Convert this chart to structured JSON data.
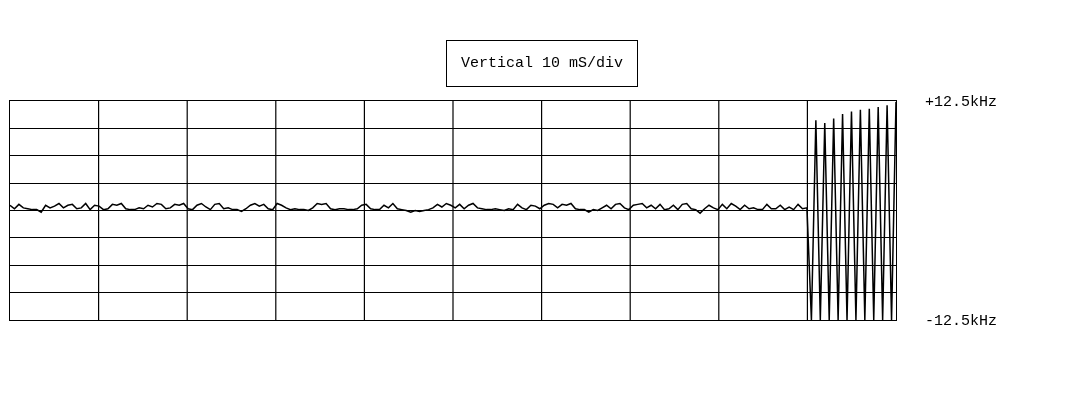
{
  "chart_data": {
    "type": "line",
    "title": "Vertical 10 mS/div",
    "categories": [
      null,
      null,
      null,
      null,
      null,
      null,
      null,
      null,
      null,
      null,
      null,
      null,
      null,
      null,
      null,
      null,
      null,
      null,
      null,
      null,
      null,
      null,
      null,
      null,
      null,
      null,
      null,
      null,
      null,
      null,
      null,
      null,
      null,
      null,
      null,
      null,
      null,
      null,
      null,
      null,
      null,
      null,
      null,
      null,
      null,
      null,
      null,
      null,
      null,
      null,
      null,
      null,
      null,
      null,
      null,
      null,
      null,
      null,
      null,
      null,
      null,
      null,
      null,
      null,
      null,
      null,
      null,
      null,
      null,
      null,
      null,
      null,
      null,
      null,
      null,
      null,
      null,
      null,
      null,
      null,
      null,
      null,
      null,
      null,
      null,
      null,
      null,
      null,
      null,
      null,
      null,
      null,
      null,
      null,
      null,
      null,
      null,
      null,
      null,
      null,
      null,
      null,
      null,
      null,
      null,
      null,
      null,
      null,
      null,
      null,
      null,
      null,
      null,
      null,
      null,
      null,
      null,
      null,
      null,
      null,
      null,
      null,
      null,
      null,
      null,
      null,
      null,
      null,
      null,
      null,
      null,
      null,
      null,
      null,
      null,
      null,
      null,
      null,
      null,
      null,
      null,
      null,
      null,
      null,
      null,
      null,
      null,
      null,
      null,
      null,
      null,
      null,
      null,
      null,
      null,
      null,
      null,
      null,
      null,
      null,
      null,
      null,
      null,
      null,
      null,
      null,
      null,
      null,
      null,
      null,
      null,
      null,
      null,
      null,
      null,
      null,
      null,
      null,
      null,
      null,
      null,
      null,
      null,
      null,
      null,
      null,
      null,
      null,
      null,
      null,
      null,
      null,
      null,
      null,
      null,
      null,
      null,
      null,
      null,
      null
    ],
    "ylim": [
      -12.5,
      12.5
    ],
    "yticks": [
      {
        "value": -12.5,
        "label": "-12.5kHz"
      },
      {
        "value": -9.375,
        "label": null
      },
      {
        "value": -6.25,
        "label": null
      },
      {
        "value": -3.125,
        "label": null
      },
      {
        "value": 0,
        "label": null
      },
      {
        "value": 3.125,
        "label": null
      },
      {
        "value": 6.25,
        "label": null
      },
      {
        "value": 9.375,
        "label": null
      },
      {
        "value": 12.5,
        "label": "+12.5kHz"
      }
    ],
    "tick_labels": "y",
    "grid": true,
    "series": [
      {
        "color": "#000000",
        "values": [
          0.6,
          0.2,
          0.7,
          0.3,
          0.2,
          0.1,
          0.1,
          -0.2,
          0.6,
          0.3,
          0.5,
          0.8,
          0.3,
          0.6,
          0.7,
          0.2,
          0.3,
          0.8,
          0.1,
          0.6,
          0.5,
          0.1,
          0.2,
          0.7,
          0.6,
          0.8,
          0.2,
          0.1,
          0.1,
          0.3,
          0.2,
          0.6,
          0.4,
          0.8,
          0.7,
          0.2,
          0.3,
          0.7,
          0.6,
          0.8,
          0.2,
          0.1,
          0.6,
          0.8,
          0.4,
          0.1,
          0.7,
          0.8,
          0.2,
          0.3,
          0.1,
          0.1,
          -0.1,
          0.2,
          0.6,
          0.8,
          0.5,
          0.7,
          0.2,
          0.1,
          0.8,
          0.6,
          0.3,
          0.1,
          0.2,
          0.1,
          0.1,
          0.0,
          0.3,
          0.8,
          0.7,
          0.8,
          0.2,
          0.1,
          0.2,
          0.2,
          0.1,
          0.1,
          0.2,
          0.6,
          0.7,
          0.2,
          0.1,
          0.1,
          0.6,
          0.3,
          0.8,
          0.2,
          0.1,
          0.0,
          -0.2,
          0.0,
          -0.1,
          0.0,
          0.1,
          0.3,
          0.7,
          0.4,
          0.8,
          0.6,
          0.3,
          0.7,
          0.2,
          0.6,
          0.8,
          0.3,
          0.2,
          0.1,
          0.1,
          0.2,
          0.1,
          0.0,
          0.2,
          0.1,
          0.7,
          0.3,
          0.1,
          0.6,
          0.5,
          0.2,
          0.6,
          0.8,
          0.7,
          0.3,
          0.7,
          0.6,
          0.8,
          0.2,
          0.1,
          0.1,
          -0.2,
          0.1,
          0.0,
          0.3,
          0.6,
          0.2,
          0.7,
          0.8,
          0.3,
          0.1,
          0.6,
          0.7,
          0.8,
          0.3,
          0.6,
          0.2,
          0.7,
          0.1,
          0.2,
          0.6,
          0.1,
          0.7,
          0.8,
          0.2,
          0.1,
          -0.3,
          0.2,
          0.6,
          0.3,
          0.1,
          0.7,
          0.2,
          0.8,
          0.5,
          0.1,
          0.6,
          0.2,
          0.3,
          0.1,
          0.1,
          0.7,
          0.2,
          0.2,
          0.6,
          0.1,
          0.4,
          0.1,
          0.7,
          0.2,
          0.3,
          -12.5,
          10.3,
          -12.5,
          10.0,
          -12.5,
          10.5,
          -12.5,
          11.0,
          -12.5,
          11.3,
          -12.5,
          11.5,
          -12.5,
          11.6,
          -12.5,
          11.8,
          -12.5,
          12.0,
          -12.5,
          12.4
        ]
      }
    ]
  }
}
